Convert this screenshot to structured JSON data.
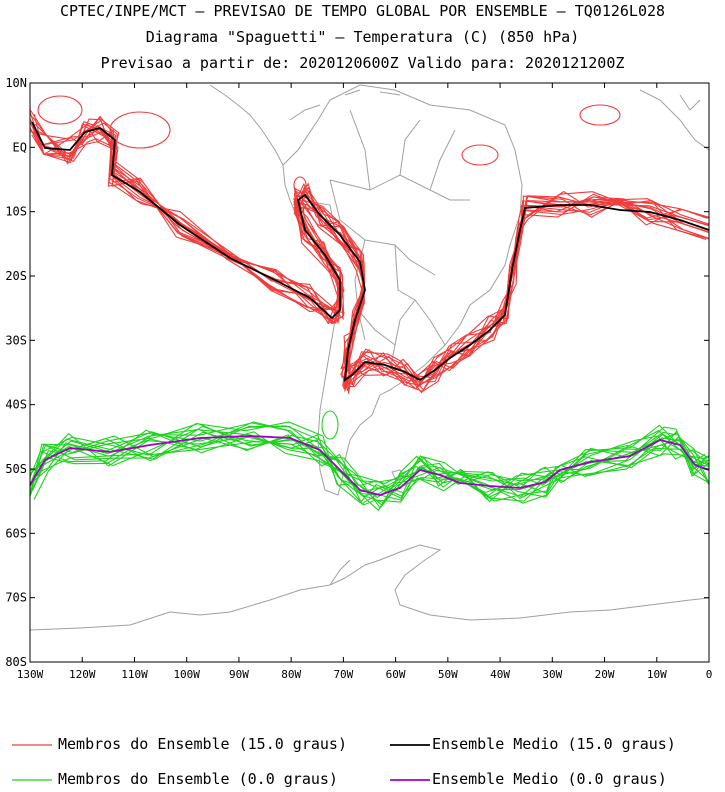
{
  "header": {
    "line1": "CPTEC/INPE/MCT – PREVISAO DE TEMPO GLOBAL POR ENSEMBLE – TQ0126L028",
    "line2": "Diagrama \"Spaguetti\" – Temperatura (C) (850 hPa)",
    "line3": "Previsao a partir de: 2020120600Z  Valido para: 2020121200Z"
  },
  "axes": {
    "lat_labels": [
      "10N",
      "EQ",
      "10S",
      "20S",
      "30S",
      "40S",
      "50S",
      "60S",
      "70S",
      "80S"
    ],
    "lon_labels": [
      "130W",
      "120W",
      "110W",
      "100W",
      "90W",
      "80W",
      "70W",
      "60W",
      "50W",
      "40W",
      "30W",
      "20W",
      "10W",
      "0"
    ]
  },
  "legend": {
    "members_15": "Membros do Ensemble (15.0 graus)",
    "mean_15": "Ensemble Medio (15.0 graus)",
    "members_0": "Membros do Ensemble (0.0 graus)",
    "mean_0": "Ensemble Medio (0.0 graus)"
  },
  "colors": {
    "members_15": "#f03c3c",
    "mean_15": "#000000",
    "members_0": "#1ed21e",
    "mean_0": "#a000c8",
    "coast": "#a0a0a0"
  }
}
